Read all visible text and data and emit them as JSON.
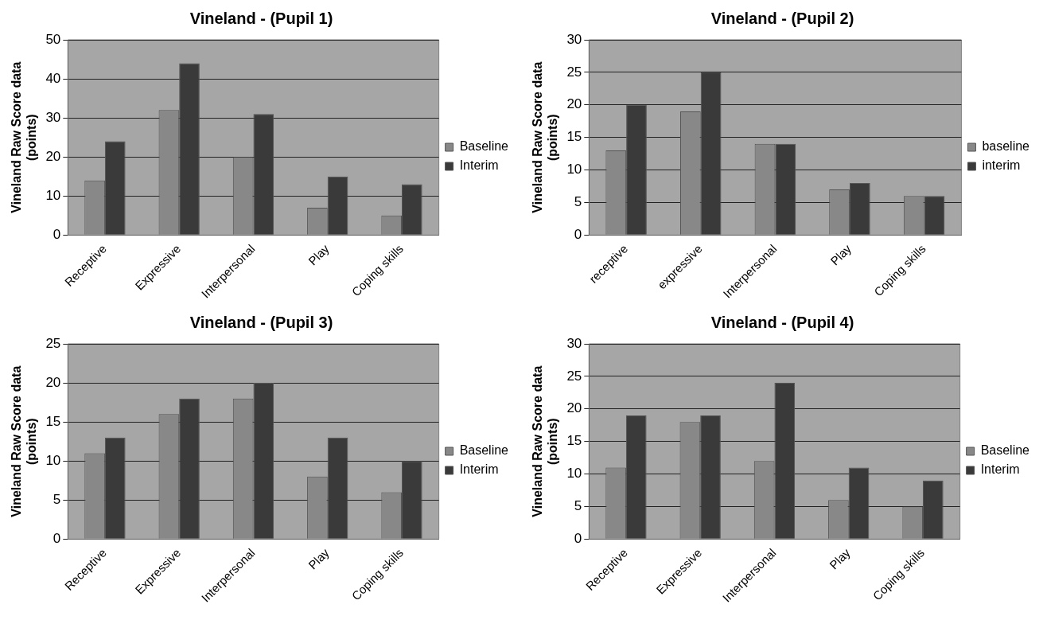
{
  "chart_data": [
    {
      "type": "bar",
      "title": "Vineland - (Pupil 1)",
      "ylabel": "Vineland Raw Score data\n(points)",
      "categories": [
        "Receptive",
        "Expressive",
        "Interpersonal",
        "Play",
        "Coping skills"
      ],
      "series": [
        {
          "name": "Baseline",
          "color": "#888888",
          "values": [
            14,
            32,
            20,
            7,
            5
          ]
        },
        {
          "name": "Interim",
          "color": "#3a3a3a",
          "values": [
            24,
            44,
            31,
            15,
            13
          ]
        }
      ],
      "ylim": [
        0,
        50
      ],
      "yticks": [
        0,
        10,
        20,
        30,
        40,
        50
      ],
      "grid": "y",
      "legend": "right"
    },
    {
      "type": "bar",
      "title": "Vineland - (Pupil 2)",
      "ylabel": "Vineland Raw Score data\n(points)",
      "categories": [
        "receptive",
        "expressive",
        "Interpersonal",
        "Play",
        "Coping skills"
      ],
      "series": [
        {
          "name": "baseline",
          "color": "#888888",
          "values": [
            13,
            19,
            14,
            7,
            6
          ]
        },
        {
          "name": "interim",
          "color": "#3a3a3a",
          "values": [
            20,
            25,
            14,
            8,
            6
          ]
        }
      ],
      "ylim": [
        0,
        30
      ],
      "yticks": [
        0,
        5,
        10,
        15,
        20,
        25,
        30
      ],
      "grid": "y",
      "legend": "right"
    },
    {
      "type": "bar",
      "title": "Vineland - (Pupil 3)",
      "ylabel": "Vineland Raw Score data\n(points)",
      "categories": [
        "Receptive",
        "Expressive",
        "Interpersonal",
        "Play",
        "Coping skills"
      ],
      "series": [
        {
          "name": "Baseline",
          "color": "#888888",
          "values": [
            11,
            16,
            18,
            8,
            6
          ]
        },
        {
          "name": "Interim",
          "color": "#3a3a3a",
          "values": [
            13,
            18,
            20,
            13,
            10
          ]
        }
      ],
      "ylim": [
        0,
        25
      ],
      "yticks": [
        0,
        5,
        10,
        15,
        20,
        25
      ],
      "grid": "y",
      "legend": "right"
    },
    {
      "type": "bar",
      "title": "Vineland - (Pupil 4)",
      "ylabel": "Vineland Raw Score data\n(points)",
      "categories": [
        "Receptive",
        "Expressive",
        "Interpersonal",
        "Play",
        "Coping skills"
      ],
      "series": [
        {
          "name": "Baseline",
          "color": "#888888",
          "values": [
            11,
            18,
            12,
            6,
            5
          ]
        },
        {
          "name": "Interim",
          "color": "#3a3a3a",
          "values": [
            19,
            19,
            24,
            11,
            9
          ]
        }
      ],
      "ylim": [
        0,
        30
      ],
      "yticks": [
        0,
        5,
        10,
        15,
        20,
        25,
        30
      ],
      "grid": "y",
      "legend": "right"
    }
  ]
}
